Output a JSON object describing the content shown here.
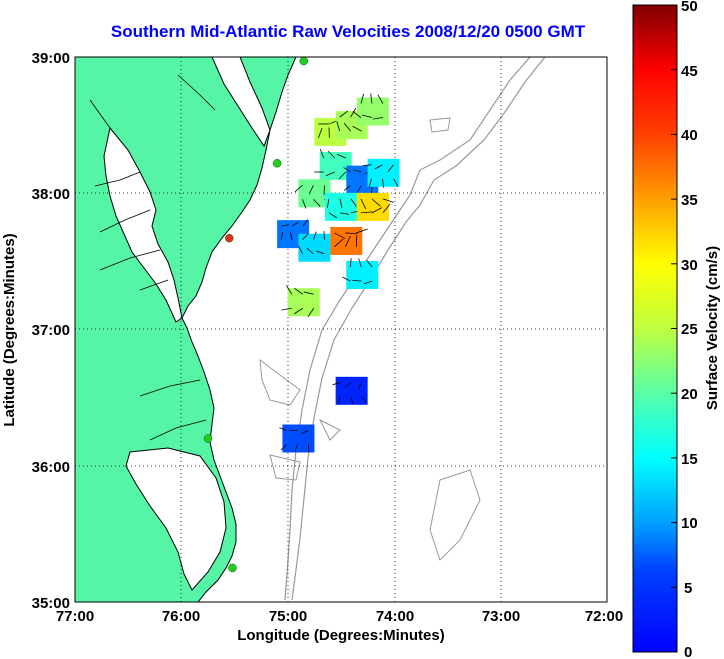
{
  "title": "Southern Mid-Atlantic Raw Velocities 2008/12/20 0500 GMT",
  "xaxis": {
    "label": "Longitude (Degrees:Minutes)",
    "ticks": [
      "77:00",
      "76:00",
      "75:00",
      "74:00",
      "73:00",
      "72:00"
    ],
    "range": [
      -77,
      -72
    ]
  },
  "yaxis": {
    "label": "Latitude (Degrees:Minutes)",
    "ticks": [
      "39:00",
      "38:00",
      "37:00",
      "36:00",
      "35:00"
    ],
    "range": [
      35,
      39
    ]
  },
  "grid": "dotted",
  "colorbar": {
    "label": "Surface Velocity (cm/s)",
    "ticks": [
      "50",
      "45",
      "40",
      "35",
      "30",
      "25",
      "20",
      "15",
      "10",
      "5",
      "0"
    ],
    "range": [
      0,
      50
    ],
    "colormap": "jet"
  },
  "colors": {
    "land": "#55f5a5",
    "coast": "#000000",
    "bathymetry": "#999999",
    "title": "#0000ff",
    "station": "#22cc22",
    "station_offline": "#e03020"
  },
  "stations": [
    {
      "lon": -74.85,
      "lat": 38.97,
      "status": "online"
    },
    {
      "lon": -75.1,
      "lat": 38.22,
      "status": "online"
    },
    {
      "lon": -75.55,
      "lat": 37.67,
      "status": "offline"
    },
    {
      "lon": -75.75,
      "lat": 36.2,
      "status": "online"
    },
    {
      "lon": -75.52,
      "lat": 35.25,
      "status": "online"
    }
  ],
  "velocity_patches": [
    {
      "lon": -74.6,
      "lat": 38.45,
      "speed": 28
    },
    {
      "lon": -74.4,
      "lat": 38.5,
      "speed": 27
    },
    {
      "lon": -74.2,
      "lat": 38.6,
      "speed": 26
    },
    {
      "lon": -74.55,
      "lat": 38.2,
      "speed": 22
    },
    {
      "lon": -74.3,
      "lat": 38.1,
      "speed": 12
    },
    {
      "lon": -74.1,
      "lat": 38.15,
      "speed": 18
    },
    {
      "lon": -74.75,
      "lat": 38.0,
      "speed": 24
    },
    {
      "lon": -74.5,
      "lat": 37.9,
      "speed": 20
    },
    {
      "lon": -74.2,
      "lat": 37.9,
      "speed": 33
    },
    {
      "lon": -74.45,
      "lat": 37.65,
      "speed": 38
    },
    {
      "lon": -74.95,
      "lat": 37.7,
      "speed": 12
    },
    {
      "lon": -74.75,
      "lat": 37.6,
      "speed": 17
    },
    {
      "lon": -74.3,
      "lat": 37.4,
      "speed": 18
    },
    {
      "lon": -74.85,
      "lat": 37.2,
      "speed": 27
    },
    {
      "lon": -74.9,
      "lat": 36.2,
      "speed": 10
    },
    {
      "lon": -74.4,
      "lat": 36.55,
      "speed": 8
    }
  ]
}
